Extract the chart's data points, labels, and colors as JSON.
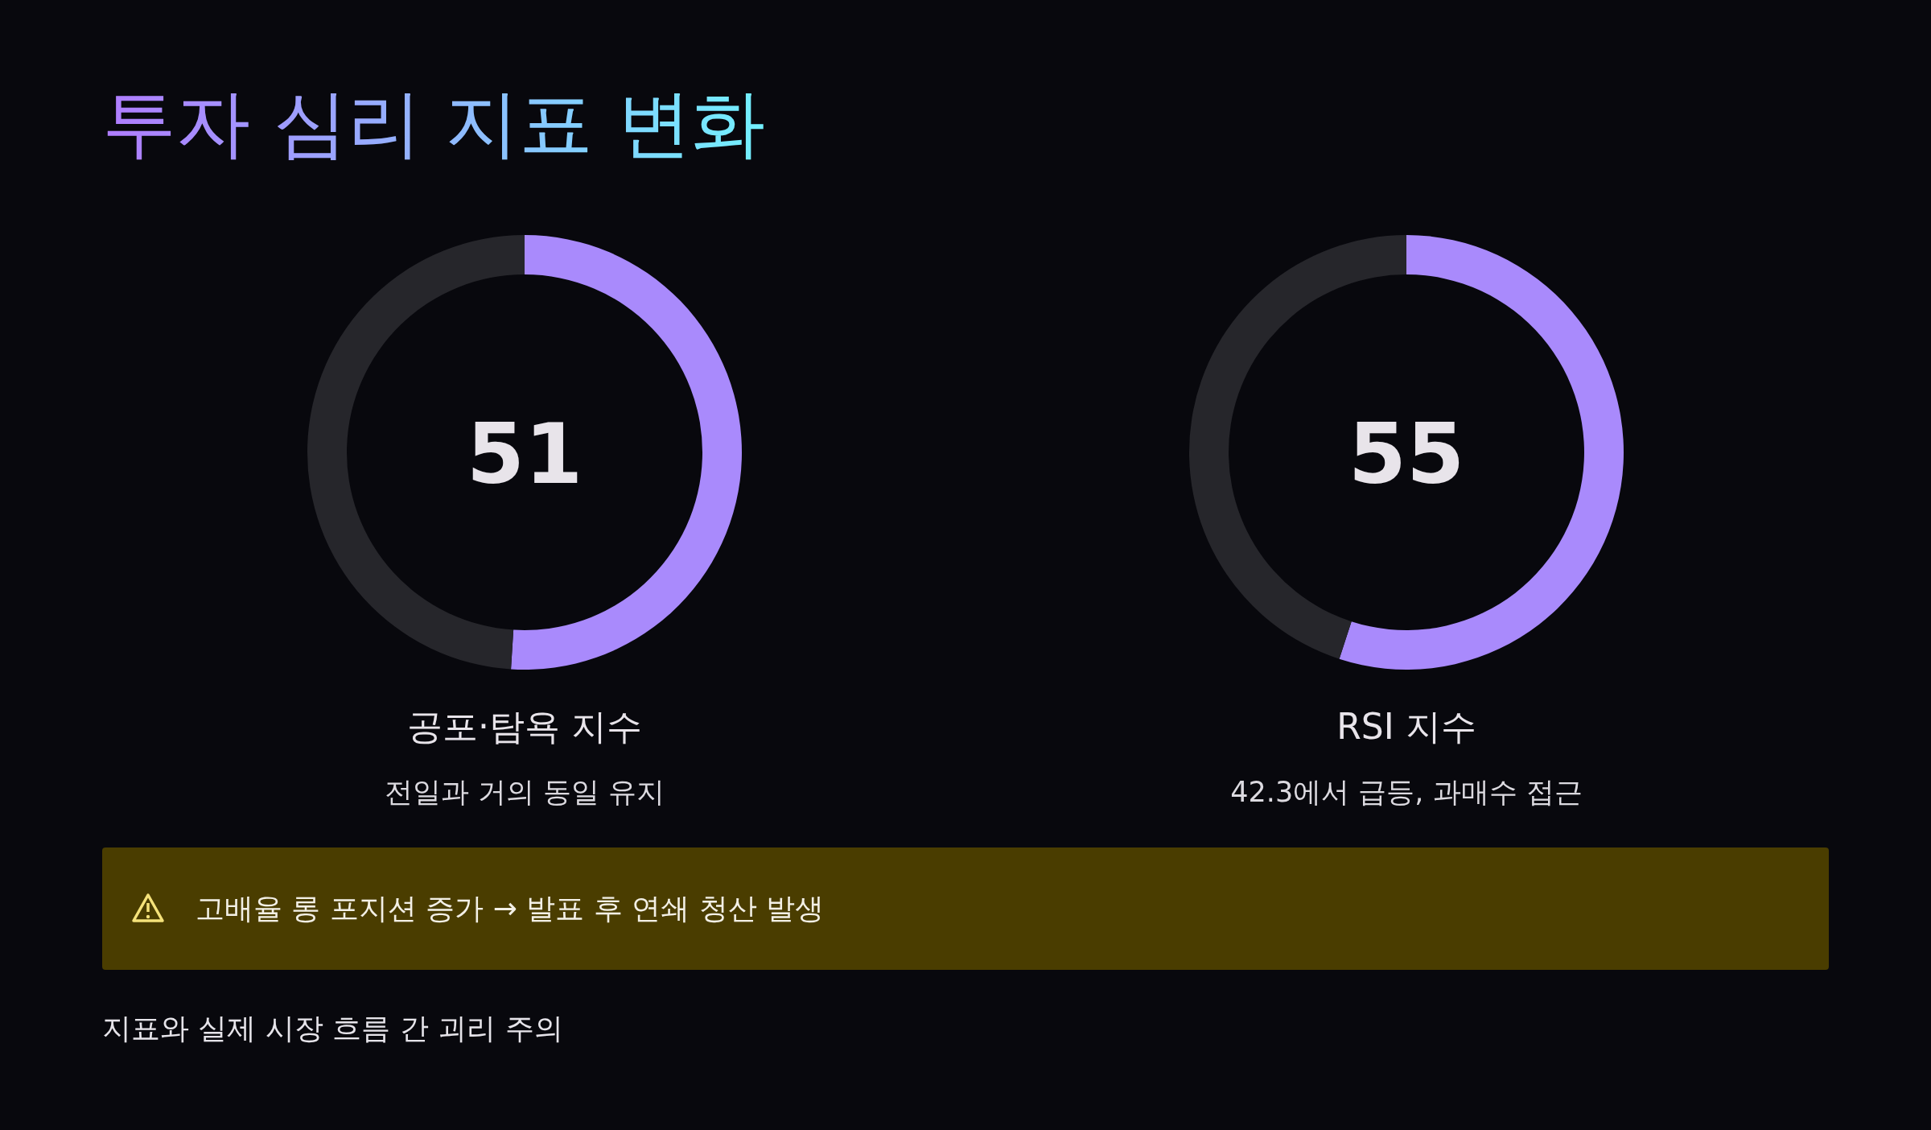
{
  "chart_data": [
    {
      "type": "other",
      "title": "투자 심리 지표 변화",
      "annotations": [
        "고배율 롱 포지션 증가 → 발표 후 연쇄 청산 발생",
        "지표와 실제 시장 흐름 간 괴리 주의"
      ]
    },
    {
      "type": "donut",
      "title": "공포·탐욕 지수",
      "subtitle": "전일과 거의 동일 유지",
      "categories": [
        null,
        null
      ],
      "values": [
        51,
        49
      ],
      "colors": [
        "#a98afc",
        "#26262b"
      ],
      "value_labels": [
        "51",
        null
      ]
    },
    {
      "type": "donut",
      "title": "RSI 지수",
      "subtitle": "42.3에서 급등, 과매수 접근",
      "categories": [
        null,
        null
      ],
      "values": [
        55,
        45
      ],
      "colors": [
        "#a98afc",
        "#26262b"
      ],
      "value_labels": [
        "55",
        null
      ]
    }
  ]
}
